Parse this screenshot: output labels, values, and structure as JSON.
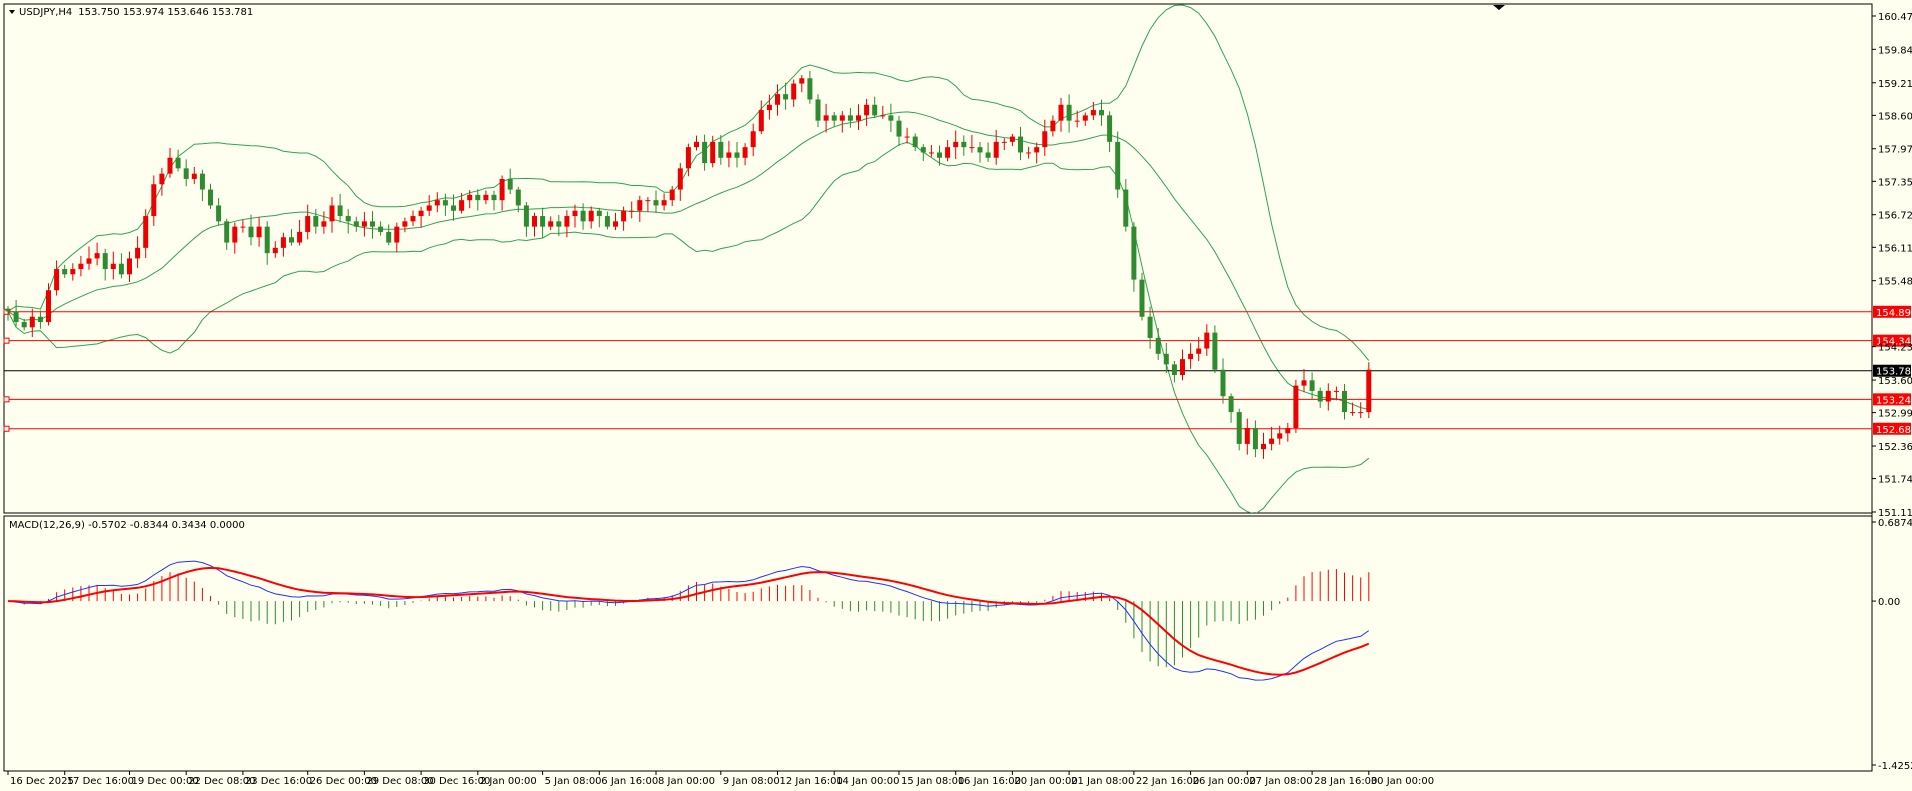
{
  "chart_title": "USDJPY,H4",
  "chart_ohlc": "153.750 153.974 153.646 153.781",
  "macd_label": "MACD(12,26,9) -0.5702 -0.8344 0.3434 0.0000",
  "current_price": "153.781",
  "colors": {
    "background": "#fffff0",
    "bull_candle": "#ee0000",
    "bear_candle": "#2e8b2e",
    "bands": "#2ea44f",
    "hline": "#ff0000",
    "price_line": "#000000",
    "macd_line": "#1e32ff",
    "signal_line": "#ff0000",
    "hist_pos": "#ff0000",
    "hist_neg": "#2e8b2e"
  },
  "chart_data": [
    {
      "type": "candlestick",
      "symbol": "USDJPY",
      "timeframe": "H4",
      "ylim": [
        151.115,
        160.475
      ],
      "y_ticks": [
        "160.475",
        "159.846",
        "159.215",
        "158.600",
        "157.970",
        "157.355",
        "156.725",
        "156.110",
        "155.480",
        "154.235",
        "153.605",
        "152.990",
        "152.360",
        "151.745",
        "151.115"
      ],
      "x_ticks": [
        "16 Dec 2025",
        "17 Dec 16:00",
        "19 Dec 00:00",
        "22 Dec 08:00",
        "23 Dec 16:00",
        "26 Dec 00:00",
        "29 Dec 08:00",
        "30 Dec 16:00",
        "2 Jan 00:00",
        "5 Jan 08:00",
        "6 Jan 16:00",
        "8 Jan 00:00",
        "9 Jan 08:00",
        "12 Jan 16:00",
        "14 Jan 00:00",
        "15 Jan 08:00",
        "16 Jan 16:00",
        "20 Jan 00:00",
        "21 Jan 08:00",
        "22 Jan 16:00",
        "26 Jan 00:00",
        "27 Jan 08:00",
        "28 Jan 16:00",
        "30 Jan 00:00"
      ],
      "horizontal_levels": [
        "154.893",
        "154.348",
        "153.241",
        "152.686"
      ],
      "close": [
        154.9,
        154.7,
        154.6,
        154.8,
        154.7,
        155.3,
        155.7,
        155.6,
        155.7,
        155.8,
        155.9,
        156.0,
        155.7,
        155.8,
        155.6,
        155.9,
        156.1,
        156.7,
        157.3,
        157.5,
        157.8,
        157.6,
        157.4,
        157.5,
        157.2,
        156.9,
        156.6,
        156.2,
        156.5,
        156.5,
        156.3,
        156.5,
        156.0,
        156.1,
        156.3,
        156.2,
        156.4,
        156.7,
        156.5,
        156.6,
        156.9,
        156.7,
        156.6,
        156.5,
        156.6,
        156.5,
        156.4,
        156.2,
        156.5,
        156.6,
        156.7,
        156.8,
        156.9,
        157.0,
        156.9,
        156.8,
        157.0,
        157.1,
        157.0,
        157.1,
        157.0,
        157.4,
        157.2,
        156.9,
        156.5,
        156.7,
        156.5,
        156.6,
        156.5,
        156.7,
        156.8,
        156.6,
        156.8,
        156.7,
        156.5,
        156.6,
        156.8,
        156.8,
        157.0,
        157.0,
        156.9,
        157.0,
        157.2,
        157.6,
        158.0,
        158.1,
        157.7,
        158.1,
        157.8,
        157.9,
        157.8,
        158.0,
        158.3,
        158.7,
        158.8,
        159.0,
        158.9,
        159.2,
        159.3,
        158.9,
        158.5,
        158.6,
        158.5,
        158.6,
        158.5,
        158.6,
        158.8,
        158.6,
        158.6,
        158.5,
        158.2,
        158.2,
        158.0,
        157.9,
        157.9,
        157.8,
        158.0,
        158.1,
        158.0,
        158.0,
        157.9,
        157.8,
        158.1,
        158.1,
        158.2,
        157.9,
        157.9,
        158.0,
        158.3,
        158.5,
        158.8,
        158.5,
        158.5,
        158.6,
        158.7,
        158.6,
        158.1,
        157.2,
        156.5,
        155.5,
        154.8,
        154.4,
        154.1,
        153.9,
        153.7,
        154.0,
        154.1,
        154.2,
        154.5,
        153.8,
        153.3,
        153.0,
        152.4,
        152.7,
        152.3,
        152.4,
        152.5,
        152.6,
        152.7,
        153.5,
        153.6,
        153.4,
        153.2,
        153.4,
        153.4,
        153.0,
        153.0,
        153.0,
        153.8
      ]
    },
    {
      "type": "line",
      "name": "MACD(12,26,9)",
      "ylim": [
        -1.4252,
        0.6874
      ],
      "y_ticks": [
        "0.6874",
        "0.00",
        "-1.4252"
      ],
      "values": {
        "macd": -0.5702,
        "signal": -0.8344,
        "histogram": 0.3434
      }
    }
  ]
}
